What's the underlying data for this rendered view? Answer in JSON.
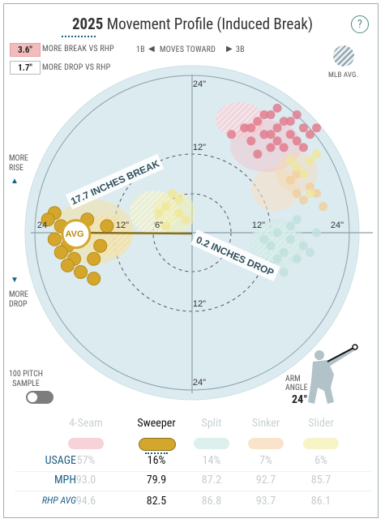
{
  "header": {
    "year": "2025",
    "title_rest": " Movement Profile (Induced Break)",
    "help_icon": "?"
  },
  "legend": {
    "break_badge": "3.6\"",
    "break_text": "MORE BREAK VS RHP",
    "drop_badge": "1.7\"",
    "drop_text": "MORE DROP VS RHP",
    "direction_left": "1B",
    "direction_text": "MOVES TOWARD",
    "direction_right": "3B",
    "mlb_avg_label": "MLB AVG."
  },
  "side_labels": {
    "more_rise": [
      "MORE",
      "RISE"
    ],
    "more_drop": [
      "MORE",
      "DROP"
    ],
    "sample": [
      "100 PITCH",
      "SAMPLE"
    ]
  },
  "arm": {
    "label": [
      "ARM",
      "ANGLE"
    ],
    "value": "24°",
    "angle_deg": 24
  },
  "colors": {
    "4seam": "#f3bfc7",
    "sweeper": "#d4a72c",
    "split": "#cfe9e6",
    "sinker": "#f6d9b5",
    "slider": "#f3efb0",
    "plot_bg": "#dcebf0",
    "axis": "#8aa0ab"
  },
  "chart_data": {
    "type": "scatter",
    "xlim": [
      -24,
      24
    ],
    "ylim": [
      -24,
      24
    ],
    "ring_labels": [
      "6\"",
      "12\"",
      "24\""
    ],
    "tick_labels": {
      "x_left": [
        "24",
        "12\"",
        "6\""
      ],
      "x_right": [
        "12\"",
        "24\""
      ],
      "y_top": [
        "24\"",
        "12\""
      ],
      "y_bottom": [
        "12\"",
        "24\""
      ]
    },
    "annotations": {
      "break": "17.7 INCHES BREAK",
      "drop": "0.2 INCHES DROP",
      "avg": "AVG"
    },
    "avg_point": {
      "x": -17.7,
      "y": -0.2
    },
    "featured_series": "Sweeper",
    "series": [
      {
        "name": "4-Seam",
        "color": "#e27d8e",
        "points": [
          [
            8,
            16
          ],
          [
            9,
            14
          ],
          [
            10,
            17
          ],
          [
            11,
            15
          ],
          [
            12,
            18
          ],
          [
            13,
            16
          ],
          [
            14,
            17
          ],
          [
            15,
            15
          ],
          [
            16,
            14
          ],
          [
            17,
            16
          ],
          [
            12,
            13
          ],
          [
            10,
            12
          ],
          [
            13,
            14
          ],
          [
            16,
            18
          ],
          [
            18,
            15
          ],
          [
            9,
            16
          ],
          [
            11,
            18
          ],
          [
            14,
            13
          ],
          [
            15,
            17
          ],
          [
            12,
            15
          ],
          [
            17,
            13
          ],
          [
            6,
            15
          ],
          [
            13,
            19
          ],
          [
            19,
            16
          ]
        ]
      },
      {
        "name": "Split",
        "color": "#bfe0dd",
        "points": [
          [
            11,
            -1
          ],
          [
            12,
            -2
          ],
          [
            13,
            0
          ],
          [
            14,
            -3
          ],
          [
            15,
            -1
          ],
          [
            16,
            -4
          ],
          [
            12,
            -5
          ],
          [
            14,
            -6
          ],
          [
            17,
            -2
          ],
          [
            13,
            -4
          ],
          [
            15,
            1
          ],
          [
            18,
            -3
          ],
          [
            16,
            2
          ],
          [
            19,
            0
          ]
        ]
      },
      {
        "name": "Sinker",
        "color": "#f2cf9d",
        "points": [
          [
            15,
            8
          ],
          [
            16,
            6
          ],
          [
            18,
            7
          ],
          [
            17,
            5
          ],
          [
            19,
            6
          ],
          [
            16,
            9
          ],
          [
            20,
            4
          ]
        ]
      },
      {
        "name": "Slider",
        "color": "#eee79a",
        "points": [
          [
            -4,
            4
          ],
          [
            -2,
            3
          ],
          [
            -3,
            6
          ],
          [
            -1,
            2
          ],
          [
            -5,
            3
          ],
          [
            17,
            9
          ],
          [
            18,
            11
          ],
          [
            16,
            10
          ],
          [
            19,
            12
          ],
          [
            -2,
            5
          ],
          [
            -4,
            1
          ],
          [
            15,
            11
          ],
          [
            18,
            6
          ]
        ]
      },
      {
        "name": "Sweeper",
        "color": "#d4a72c",
        "points": [
          [
            -21,
            3
          ],
          [
            -20,
            1
          ],
          [
            -21,
            -1
          ],
          [
            -19,
            -2
          ],
          [
            -18,
            -4
          ],
          [
            -17,
            -6
          ],
          [
            -15,
            -4
          ],
          [
            -14,
            -2
          ],
          [
            -13,
            1
          ],
          [
            -16,
            2
          ],
          [
            -22,
            2
          ],
          [
            -19,
            -5
          ],
          [
            -17,
            -1
          ],
          [
            -15,
            -7
          ],
          [
            -20,
            -3
          ]
        ]
      }
    ]
  },
  "table": {
    "columns": [
      "4-Seam",
      "Sweeper",
      "Split",
      "Sinker",
      "Slider"
    ],
    "active_index": 1,
    "rows": [
      {
        "label": "USAGE",
        "values": [
          "57%",
          "16%",
          "14%",
          "7%",
          "6%"
        ]
      },
      {
        "label": "MPH",
        "values": [
          "93.0",
          "79.9",
          "87.2",
          "92.7",
          "85.7"
        ]
      },
      {
        "label": "RHP AVG",
        "values": [
          "94.6",
          "82.5",
          "86.8",
          "93.7",
          "86.1"
        ]
      }
    ]
  }
}
